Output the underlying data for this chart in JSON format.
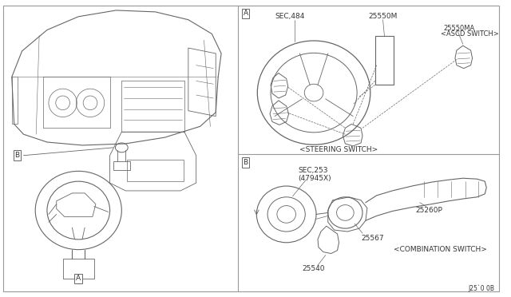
{
  "bg_color": "#ffffff",
  "lc": "#666666",
  "tc": "#333333",
  "fig_width": 6.4,
  "fig_height": 3.72,
  "labels": {
    "sec484": "SEC,484",
    "p25550m": "25550M",
    "p25550ma": "25550MA",
    "ascd": "<ASCD SWITCH>",
    "steering_switch": "<STEERING SWITCH>",
    "combo_switch": "<COMBINATION SWITCH>",
    "sec253": "SEC,253",
    "p47945x": "(47945X)",
    "p25260p": "25260P",
    "p25567": "25567",
    "p25540": "25540",
    "bottom_code": "J25`0 0B"
  }
}
